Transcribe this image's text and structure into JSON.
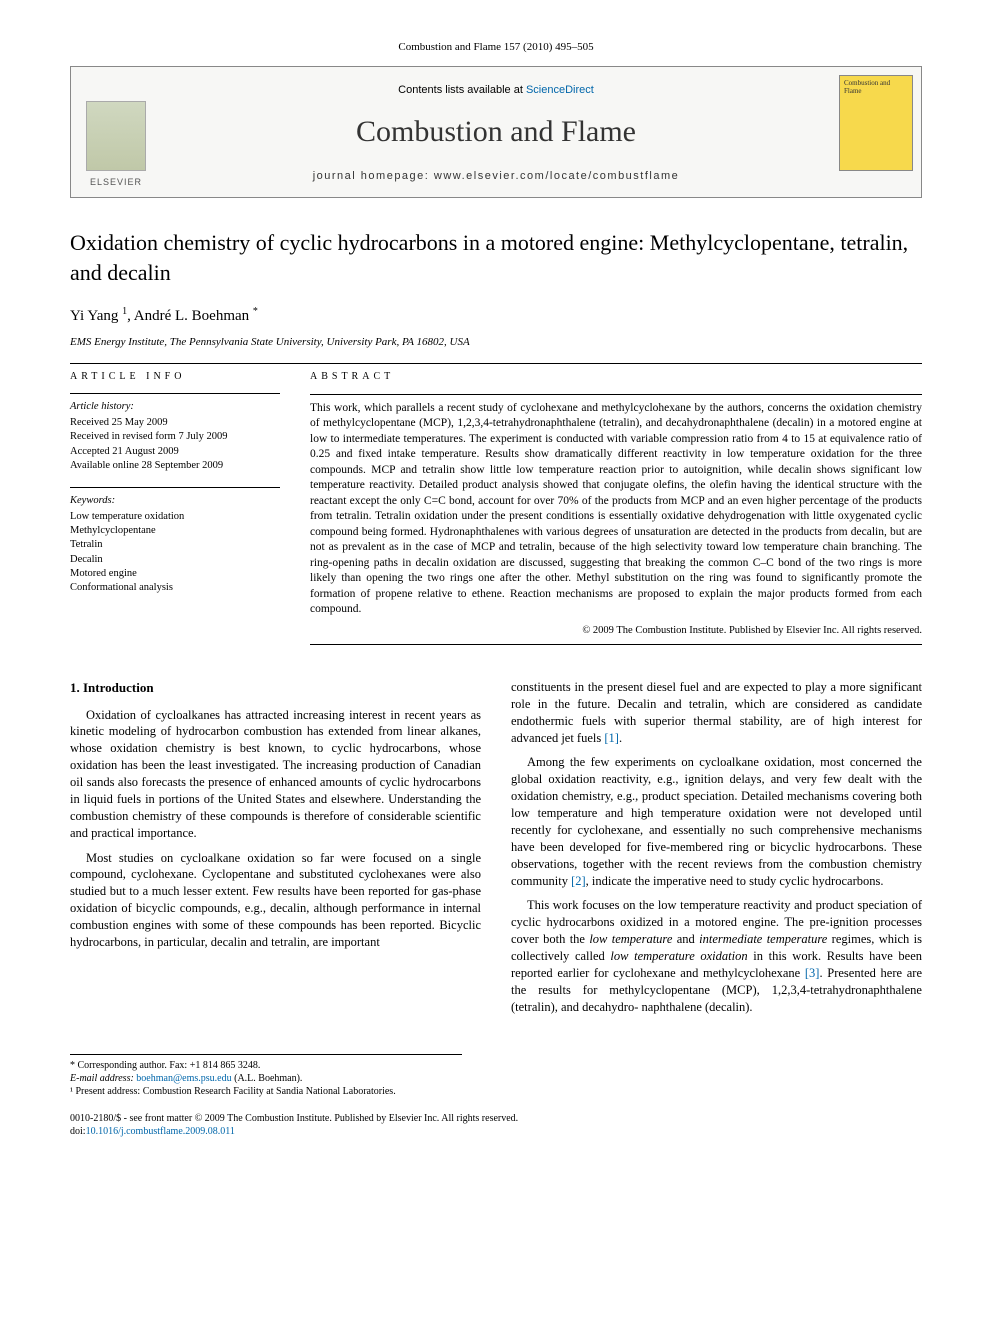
{
  "header_citation": "Combustion and Flame 157 (2010) 495–505",
  "banner": {
    "publisher": "ELSEVIER",
    "contents_prefix": "Contents lists available at ",
    "contents_link": "ScienceDirect",
    "journal": "Combustion and Flame",
    "homepage_prefix": "journal homepage: ",
    "homepage_url": "www.elsevier.com/locate/combustflame",
    "cover_title": "Combustion and Flame"
  },
  "title": "Oxidation chemistry of cyclic hydrocarbons in a motored engine: Methylcyclopentane, tetralin, and decalin",
  "authors_html": "Yi Yang <sup>1</sup>, André L. Boehman <sup>*</sup>",
  "affiliation": "EMS Energy Institute, The Pennsylvania State University, University Park, PA 16802, USA",
  "article_info": {
    "label": "ARTICLE INFO",
    "history_label": "Article history:",
    "history": [
      "Received 25 May 2009",
      "Received in revised form 7 July 2009",
      "Accepted 21 August 2009",
      "Available online 28 September 2009"
    ],
    "keywords_label": "Keywords:",
    "keywords": [
      "Low temperature oxidation",
      "Methylcyclopentane",
      "Tetralin",
      "Decalin",
      "Motored engine",
      "Conformational analysis"
    ]
  },
  "abstract": {
    "label": "ABSTRACT",
    "text": "This work, which parallels a recent study of cyclohexane and methylcyclohexane by the authors, concerns the oxidation chemistry of methylcyclopentane (MCP), 1,2,3,4-tetrahydronaphthalene (tetralin), and decahydronaphthalene (decalin) in a motored engine at low to intermediate temperatures. The experiment is conducted with variable compression ratio from 4 to 15 at equivalence ratio of 0.25 and fixed intake temperature. Results show dramatically different reactivity in low temperature oxidation for the three compounds. MCP and tetralin show little low temperature reaction prior to autoignition, while decalin shows significant low temperature reactivity. Detailed product analysis showed that conjugate olefins, the olefin having the identical structure with the reactant except the only C=C bond, account for over 70% of the products from MCP and an even higher percentage of the products from tetralin. Tetralin oxidation under the present conditions is essentially oxidative dehydrogenation with little oxygenated cyclic compound being formed. Hydronaphthalenes with various degrees of unsaturation are detected in the products from decalin, but are not as prevalent as in the case of MCP and tetralin, because of the high selectivity toward low temperature chain branching. The ring-opening paths in decalin oxidation are discussed, suggesting that breaking the common C–C bond of the two rings is more likely than opening the two rings one after the other. Methyl substitution on the ring was found to significantly promote the formation of propene relative to ethene. Reaction mechanisms are proposed to explain the major products formed from each compound.",
    "copyright": "© 2009 The Combustion Institute. Published by Elsevier Inc. All rights reserved."
  },
  "section1_heading": "1. Introduction",
  "col_left": {
    "p1": "Oxidation of cycloalkanes has attracted increasing interest in recent years as kinetic modeling of hydrocarbon combustion has extended from linear alkanes, whose oxidation chemistry is best known, to cyclic hydrocarbons, whose oxidation has been the least investigated. The increasing production of Canadian oil sands also forecasts the presence of enhanced amounts of cyclic hydrocarbons in liquid fuels in portions of the United States and elsewhere. Understanding the combustion chemistry of these compounds is therefore of considerable scientific and practical importance.",
    "p2": "Most studies on cycloalkane oxidation so far were focused on a single compound, cyclohexane. Cyclopentane and substituted cyclohexanes were also studied but to a much lesser extent. Few results have been reported for gas-phase oxidation of bicyclic compounds, e.g., decalin, although performance in internal combustion engines with some of these compounds has been reported. Bicyclic hydrocarbons, in particular, decalin and tetralin, are important"
  },
  "col_right": {
    "p1_a": "constituents in the present diesel fuel and are expected to play a more significant role in the future. Decalin and tetralin, which are considered as candidate endothermic fuels with superior thermal stability, are of high interest for advanced jet fuels ",
    "ref1": "[1]",
    "p1_b": ".",
    "p2_a": "Among the few experiments on cycloalkane oxidation, most concerned the global oxidation reactivity, e.g., ignition delays, and very few dealt with the oxidation chemistry, e.g., product speciation. Detailed mechanisms covering both low temperature and high temperature oxidation were not developed until recently for cyclohexane, and essentially no such comprehensive mechanisms have been developed for five-membered ring or bicyclic hydrocarbons. These observations, together with the recent reviews from the combustion chemistry community ",
    "ref2": "[2]",
    "p2_b": ", indicate the imperative need to study cyclic hydrocarbons.",
    "p3_a": "This work focuses on the low temperature reactivity and product speciation of cyclic hydrocarbons oxidized in a motored engine. The pre-ignition processes cover both the ",
    "p3_i1": "low temperature",
    "p3_b": " and ",
    "p3_i2": "intermediate temperature",
    "p3_c": " regimes, which is collectively called ",
    "p3_i3": "low temperature oxidation",
    "p3_d": " in this work. Results have been reported earlier for cyclohexane and methylcyclohexane ",
    "ref3": "[3]",
    "p3_e": ". Presented here are the results for methylcyclopentane (MCP), 1,2,3,4-tetrahydronaphthalene (tetralin), and decahydro- naphthalene (decalin)."
  },
  "footnotes": {
    "corr": "* Corresponding author. Fax: +1 814 865 3248.",
    "email_label": "E-mail address: ",
    "email": "boehman@ems.psu.edu",
    "email_suffix": " (A.L. Boehman).",
    "note1": "¹ Present address: Combustion Research Facility at Sandia National Laboratories."
  },
  "footer": {
    "line1": "0010-2180/$ - see front matter © 2009 The Combustion Institute. Published by Elsevier Inc. All rights reserved.",
    "doi_label": "doi:",
    "doi": "10.1016/j.combustflame.2009.08.011"
  }
}
